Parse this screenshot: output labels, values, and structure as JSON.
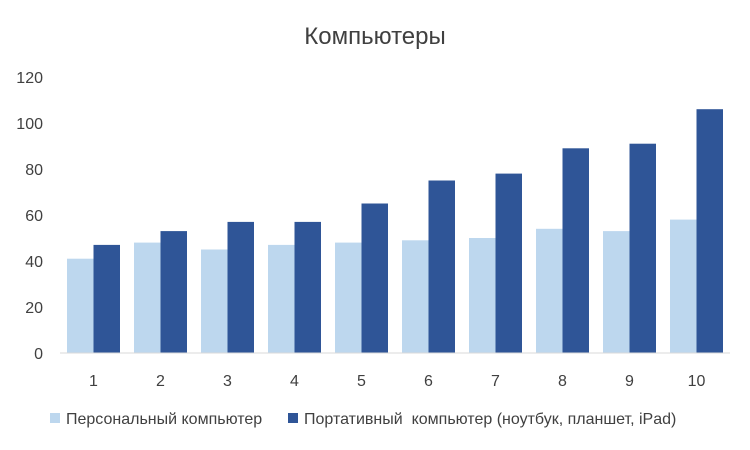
{
  "chart_data": {
    "type": "bar",
    "title": "Компьютеры",
    "xlabel": "",
    "ylabel": "",
    "categories": [
      "1",
      "2",
      "3",
      "4",
      "5",
      "6",
      "7",
      "8",
      "9",
      "10"
    ],
    "series": [
      {
        "name": "Персональный компьютер",
        "color": "#bdd7ee",
        "values": [
          41,
          48,
          45,
          47,
          48,
          49,
          50,
          54,
          53,
          58
        ]
      },
      {
        "name": "Портативный  компьютер (ноутбук, планшет, iPad)",
        "color": "#2f5597",
        "values": [
          47,
          53,
          57,
          57,
          65,
          75,
          78,
          89,
          91,
          106
        ]
      }
    ],
    "ylim": [
      0,
      120
    ],
    "yticks": [
      0,
      20,
      40,
      60,
      80,
      100,
      120
    ],
    "grid": false,
    "legend_position": "bottom"
  }
}
